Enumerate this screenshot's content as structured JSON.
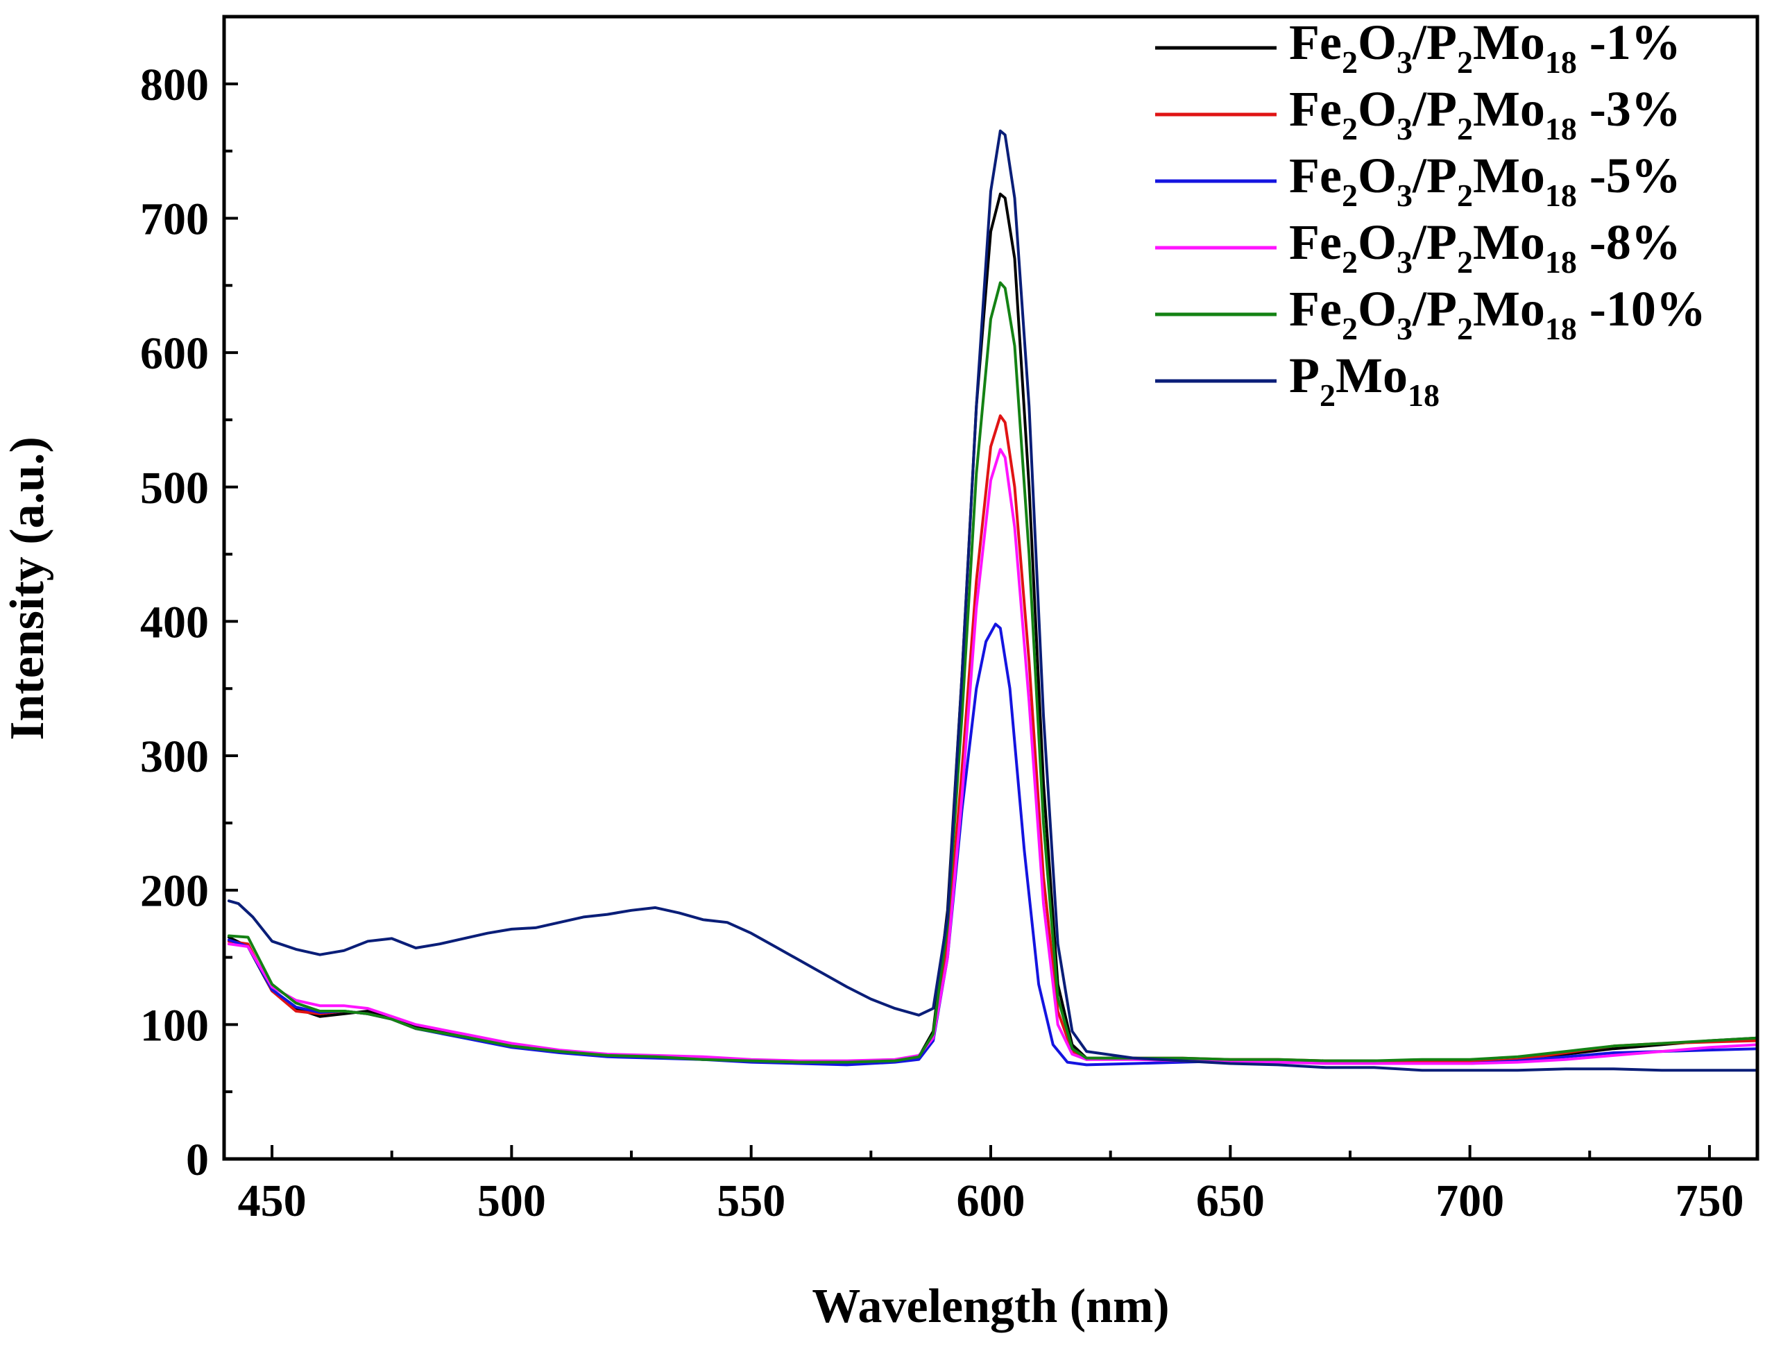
{
  "chart_data": {
    "type": "line",
    "title": "",
    "xlabel": "Wavelength (nm)",
    "ylabel": "Intensity (a.u.)",
    "xlim": [
      440,
      760
    ],
    "ylim": [
      0,
      850
    ],
    "x_ticks": [
      450,
      500,
      550,
      600,
      650,
      700,
      750
    ],
    "y_ticks": [
      0,
      100,
      200,
      300,
      400,
      500,
      600,
      700,
      800
    ],
    "x_tick_labels": [
      "450",
      "500",
      "550",
      "600",
      "650",
      "700",
      "750"
    ],
    "y_tick_labels": [
      "0",
      "100",
      "200",
      "300",
      "400",
      "500",
      "600",
      "700",
      "800"
    ],
    "legend_position": "top-right",
    "series": [
      {
        "name": "Fe2O3/P2Mo18 -1%",
        "legend_parts": [
          [
            "Fe",
            ""
          ],
          [
            "2",
            "sub"
          ],
          [
            "O",
            ""
          ],
          [
            "3",
            "sub"
          ],
          [
            "/P",
            ""
          ],
          [
            "2",
            "sub"
          ],
          [
            "Mo",
            ""
          ],
          [
            "18",
            "sub"
          ],
          [
            " -1%",
            ""
          ]
        ],
        "color": "#000000",
        "x": [
          441,
          445,
          450,
          455,
          460,
          465,
          470,
          475,
          480,
          490,
          500,
          510,
          520,
          530,
          540,
          550,
          560,
          570,
          580,
          585,
          588,
          591,
          594,
          597,
          600,
          602,
          603,
          605,
          608,
          611,
          614,
          617,
          620,
          630,
          640,
          650,
          660,
          670,
          680,
          690,
          700,
          710,
          720,
          730,
          740,
          750,
          760
        ],
        "y": [
          165,
          158,
          125,
          112,
          106,
          108,
          110,
          105,
          98,
          92,
          85,
          80,
          77,
          76,
          74,
          73,
          72,
          72,
          73,
          76,
          95,
          185,
          360,
          560,
          690,
          718,
          715,
          670,
          500,
          280,
          130,
          85,
          75,
          75,
          74,
          73,
          73,
          73,
          73,
          73,
          72,
          74,
          78,
          82,
          85,
          88,
          90
        ]
      },
      {
        "name": "Fe2O3/P2Mo18 -3%",
        "legend_parts": [
          [
            "Fe",
            ""
          ],
          [
            "2",
            "sub"
          ],
          [
            "O",
            ""
          ],
          [
            "3",
            "sub"
          ],
          [
            "/P",
            ""
          ],
          [
            "2",
            "sub"
          ],
          [
            "Mo",
            ""
          ],
          [
            "18",
            "sub"
          ],
          [
            " -3%",
            ""
          ]
        ],
        "color": "#e01414",
        "x": [
          441,
          445,
          450,
          455,
          460,
          465,
          470,
          475,
          480,
          490,
          500,
          510,
          520,
          530,
          540,
          550,
          560,
          570,
          580,
          585,
          588,
          591,
          594,
          597,
          600,
          602,
          603,
          605,
          608,
          611,
          614,
          617,
          620,
          630,
          640,
          650,
          660,
          670,
          680,
          690,
          700,
          710,
          720,
          730,
          740,
          750,
          760
        ],
        "y": [
          162,
          160,
          125,
          110,
          108,
          110,
          108,
          104,
          97,
          91,
          84,
          80,
          77,
          76,
          75,
          73,
          72,
          72,
          73,
          76,
          92,
          160,
          290,
          430,
          530,
          553,
          548,
          500,
          370,
          210,
          110,
          80,
          74,
          75,
          75,
          74,
          74,
          73,
          72,
          72,
          72,
          74,
          79,
          84,
          86,
          87,
          88
        ]
      },
      {
        "name": "Fe2O3/P2Mo18 -5%",
        "legend_parts": [
          [
            "Fe",
            ""
          ],
          [
            "2",
            "sub"
          ],
          [
            "O",
            ""
          ],
          [
            "3",
            "sub"
          ],
          [
            "/P",
            ""
          ],
          [
            "2",
            "sub"
          ],
          [
            "Mo",
            ""
          ],
          [
            "18",
            "sub"
          ],
          [
            " -5%",
            ""
          ]
        ],
        "color": "#1414e0",
        "x": [
          441,
          445,
          450,
          455,
          460,
          465,
          470,
          475,
          480,
          490,
          500,
          510,
          520,
          530,
          540,
          550,
          560,
          570,
          580,
          585,
          588,
          591,
          594,
          597,
          599,
          601,
          602,
          604,
          607,
          610,
          613,
          616,
          620,
          630,
          640,
          650,
          660,
          670,
          680,
          690,
          700,
          710,
          720,
          730,
          740,
          750,
          760
        ],
        "y": [
          163,
          158,
          126,
          113,
          109,
          110,
          108,
          104,
          97,
          90,
          83,
          79,
          76,
          75,
          74,
          72,
          71,
          70,
          72,
          74,
          88,
          150,
          260,
          350,
          385,
          398,
          395,
          350,
          230,
          130,
          85,
          72,
          70,
          71,
          72,
          73,
          72,
          72,
          71,
          71,
          71,
          73,
          76,
          79,
          80,
          81,
          82
        ]
      },
      {
        "name": "Fe2O3/P2Mo18 -8%",
        "legend_parts": [
          [
            "Fe",
            ""
          ],
          [
            "2",
            "sub"
          ],
          [
            "O",
            ""
          ],
          [
            "3",
            "sub"
          ],
          [
            "/P",
            ""
          ],
          [
            "2",
            "sub"
          ],
          [
            "Mo",
            ""
          ],
          [
            "18",
            "sub"
          ],
          [
            " -8%",
            ""
          ]
        ],
        "color": "#ff14ff",
        "x": [
          441,
          445,
          450,
          455,
          460,
          465,
          470,
          475,
          480,
          490,
          500,
          510,
          520,
          530,
          540,
          550,
          560,
          570,
          580,
          585,
          588,
          591,
          594,
          597,
          600,
          602,
          603,
          605,
          608,
          611,
          614,
          617,
          620,
          630,
          640,
          650,
          660,
          670,
          680,
          690,
          700,
          710,
          720,
          730,
          740,
          750,
          760
        ],
        "y": [
          160,
          158,
          128,
          118,
          114,
          114,
          112,
          106,
          100,
          93,
          86,
          81,
          78,
          77,
          76,
          74,
          73,
          73,
          74,
          77,
          90,
          150,
          270,
          410,
          505,
          528,
          522,
          470,
          340,
          190,
          100,
          78,
          74,
          74,
          73,
          72,
          72,
          71,
          71,
          71,
          71,
          72,
          74,
          77,
          80,
          83,
          85
        ]
      },
      {
        "name": "Fe2O3/P2Mo18 -10%",
        "legend_parts": [
          [
            "Fe",
            ""
          ],
          [
            "2",
            "sub"
          ],
          [
            "O",
            ""
          ],
          [
            "3",
            "sub"
          ],
          [
            "/P",
            ""
          ],
          [
            "2",
            "sub"
          ],
          [
            "Mo",
            ""
          ],
          [
            "18",
            "sub"
          ],
          [
            " -10%",
            ""
          ]
        ],
        "color": "#148214",
        "x": [
          441,
          445,
          450,
          455,
          460,
          465,
          470,
          475,
          480,
          490,
          500,
          510,
          520,
          530,
          540,
          550,
          560,
          570,
          580,
          585,
          588,
          591,
          594,
          597,
          600,
          602,
          603,
          605,
          608,
          611,
          614,
          617,
          620,
          630,
          640,
          650,
          660,
          670,
          680,
          690,
          700,
          710,
          720,
          730,
          740,
          750,
          760
        ],
        "y": [
          166,
          165,
          130,
          116,
          110,
          110,
          108,
          104,
          97,
          91,
          84,
          80,
          77,
          76,
          74,
          73,
          72,
          72,
          73,
          76,
          93,
          175,
          330,
          510,
          625,
          652,
          648,
          605,
          450,
          250,
          120,
          82,
          75,
          75,
          75,
          74,
          74,
          73,
          73,
          74,
          74,
          76,
          80,
          84,
          86,
          88,
          90
        ]
      },
      {
        "name": "P2Mo18",
        "legend_parts": [
          [
            "P",
            ""
          ],
          [
            "2",
            "sub"
          ],
          [
            "Mo",
            ""
          ],
          [
            "18",
            "sub"
          ]
        ],
        "color": "#0a1e78",
        "x": [
          441,
          443,
          446,
          450,
          455,
          460,
          465,
          470,
          475,
          480,
          485,
          490,
          495,
          500,
          505,
          510,
          515,
          520,
          525,
          530,
          535,
          540,
          545,
          550,
          555,
          560,
          565,
          570,
          575,
          580,
          585,
          588,
          591,
          594,
          597,
          600,
          602,
          603,
          605,
          608,
          611,
          614,
          617,
          620,
          630,
          640,
          650,
          660,
          670,
          680,
          690,
          700,
          710,
          720,
          730,
          740,
          750,
          760
        ],
        "y": [
          192,
          190,
          180,
          162,
          156,
          152,
          155,
          162,
          164,
          157,
          160,
          164,
          168,
          171,
          172,
          176,
          180,
          182,
          185,
          187,
          183,
          178,
          176,
          168,
          158,
          148,
          138,
          128,
          119,
          112,
          107,
          112,
          180,
          360,
          560,
          720,
          765,
          762,
          715,
          560,
          330,
          160,
          95,
          80,
          75,
          73,
          71,
          70,
          68,
          68,
          66,
          66,
          66,
          67,
          67,
          66,
          66,
          66
        ]
      }
    ]
  }
}
